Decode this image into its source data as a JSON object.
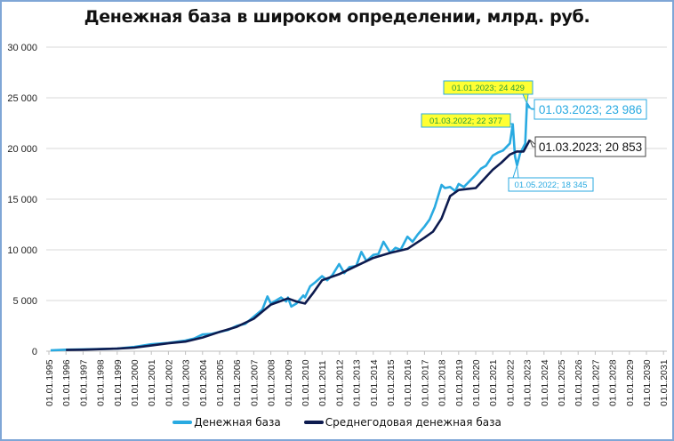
{
  "chart_data": {
    "type": "line",
    "title": "Денежная база в широком определении, млрд. руб.",
    "xlabel": "",
    "ylabel": "",
    "ylim": [
      0,
      30000
    ],
    "yticks": [
      0,
      5000,
      10000,
      15000,
      20000,
      25000,
      30000
    ],
    "ytick_labels": [
      "0",
      "5 000",
      "10 000",
      "15 000",
      "20 000",
      "25 000",
      "30 000"
    ],
    "xtick_labels": [
      "01.01.1995",
      "01.01.1996",
      "01.01.1997",
      "01.01.1998",
      "01.01.1999",
      "01.01.2000",
      "01.01.2001",
      "01.01.2002",
      "01.01.2003",
      "01.01.2004",
      "01.01.2005",
      "01.01.2006",
      "01.01.2007",
      "01.01.2008",
      "01.01.2009",
      "01.01.2010",
      "01.01.2011",
      "01.01.2012",
      "01.01.2013",
      "01.01.2014",
      "01.01.2015",
      "01.01.2016",
      "01.01.2017",
      "01.01.2018",
      "01.01.2019",
      "01.01.2020",
      "01.01.2021",
      "01.01.2022",
      "01.01.2023",
      "01.01.2024",
      "01.01.2025",
      "01.01.2026",
      "01.01.2027",
      "01.01.2028",
      "01.01.2029",
      "01.01.2030",
      "01.01.2031"
    ],
    "grid": true,
    "legend_position": "bottom",
    "series": [
      {
        "name": "Денежная база",
        "color": "#29aae1",
        "x": [
          1995.1,
          1996.0,
          1997.0,
          1998.0,
          1999.0,
          2000.0,
          2001.0,
          2002.0,
          2003.0,
          2003.5,
          2004.0,
          2004.5,
          2005.0,
          2005.5,
          2006.0,
          2006.5,
          2007.0,
          2007.5,
          2007.8,
          2008.0,
          2008.3,
          2008.6,
          2008.9,
          2009.0,
          2009.2,
          2009.5,
          2009.9,
          2010.0,
          2010.3,
          2010.6,
          2011.0,
          2011.3,
          2011.6,
          2012.0,
          2012.3,
          2012.6,
          2013.0,
          2013.3,
          2013.6,
          2014.0,
          2014.3,
          2014.6,
          2015.0,
          2015.3,
          2015.6,
          2016.0,
          2016.3,
          2016.6,
          2017.0,
          2017.3,
          2017.6,
          2018.0,
          2018.2,
          2018.5,
          2018.8,
          2019.0,
          2019.3,
          2019.6,
          2020.0,
          2020.3,
          2020.6,
          2021.0,
          2021.3,
          2021.6,
          2022.0,
          2022.17,
          2022.3,
          2022.42,
          2022.6,
          2022.9,
          2023.0,
          2023.17
        ],
        "values": [
          80,
          150,
          180,
          220,
          250,
          420,
          680,
          820,
          1050,
          1250,
          1650,
          1700,
          1900,
          2100,
          2500,
          2700,
          3400,
          4100,
          5400,
          4700,
          5000,
          5300,
          4900,
          5300,
          4400,
          4700,
          5500,
          5300,
          6400,
          6800,
          7400,
          7000,
          7500,
          8600,
          7700,
          8300,
          8400,
          9800,
          8900,
          9500,
          9600,
          10800,
          9700,
          10200,
          10000,
          11300,
          10800,
          11500,
          12300,
          13000,
          14200,
          16400,
          16100,
          16200,
          15800,
          16500,
          16200,
          16700,
          17400,
          18000,
          18300,
          19300,
          19600,
          19800,
          20500,
          22377,
          19200,
          18345,
          19500,
          20500,
          24429,
          23986
        ]
      },
      {
        "name": "Среднегодовая денежная база",
        "color": "#0d1b4f",
        "x": [
          1996.0,
          1997.0,
          1998.0,
          1999.0,
          2000.0,
          2001.0,
          2002.0,
          2003.0,
          2004.0,
          2005.0,
          2006.0,
          2007.0,
          2007.5,
          2008.0,
          2008.5,
          2009.0,
          2009.5,
          2010.0,
          2010.5,
          2011.0,
          2012.0,
          2013.0,
          2014.0,
          2015.0,
          2016.0,
          2017.0,
          2017.5,
          2018.0,
          2018.5,
          2019.0,
          2019.5,
          2020.0,
          2021.0,
          2021.5,
          2022.0,
          2022.4,
          2022.8,
          2023.17
        ],
        "values": [
          120,
          150,
          200,
          250,
          350,
          560,
          780,
          950,
          1350,
          1900,
          2400,
          3200,
          3900,
          4600,
          4900,
          5200,
          4900,
          4700,
          5800,
          7000,
          7600,
          8400,
          9200,
          9700,
          10100,
          11200,
          11800,
          13100,
          15300,
          15900,
          16000,
          16100,
          17900,
          18600,
          19400,
          19700,
          19700,
          20853
        ]
      }
    ],
    "annotations": [
      {
        "text": "01.01.2023; 24 429",
        "style": "yellow",
        "target_x": 2023.0,
        "target_y": 24429
      },
      {
        "text": "01.03.2022; 22 377",
        "style": "yellow",
        "target_x": 2022.17,
        "target_y": 22377
      },
      {
        "text": "01.03.2023;  23 986",
        "style": "cyan-large",
        "target_x": 2023.17,
        "target_y": 23986
      },
      {
        "text": "01.03.2023;  20 853",
        "style": "black-large",
        "target_x": 2023.17,
        "target_y": 20853
      },
      {
        "text": "01.05.2022; 18 345",
        "style": "cyan-small",
        "target_x": 2022.42,
        "target_y": 18345
      }
    ]
  },
  "legend": {
    "items": [
      {
        "label": "Денежная база",
        "color": "#29aae1"
      },
      {
        "label": "Среднегодовая денежная база",
        "color": "#0d1b4f"
      }
    ]
  }
}
